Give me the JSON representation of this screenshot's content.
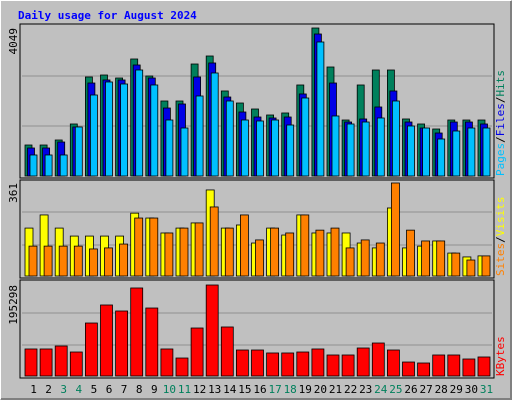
{
  "title": "Daily usage for August 2024",
  "categories": [
    "1",
    "2",
    "3",
    "4",
    "5",
    "6",
    "7",
    "8",
    "9",
    "10",
    "11",
    "12",
    "13",
    "14",
    "15",
    "16",
    "17",
    "18",
    "19",
    "20",
    "21",
    "22",
    "23",
    "24",
    "25",
    "26",
    "27",
    "28",
    "29",
    "30",
    "31"
  ],
  "category_colors": [
    "#000000",
    "#000000",
    "#00805c",
    "#00805c",
    "#000000",
    "#000000",
    "#000000",
    "#000000",
    "#000000",
    "#00805c",
    "#00805c",
    "#000000",
    "#000000",
    "#000000",
    "#000000",
    "#000000",
    "#00805c",
    "#00805c",
    "#000000",
    "#000000",
    "#000000",
    "#000000",
    "#000000",
    "#00805c",
    "#00805c",
    "#000000",
    "#000000",
    "#000000",
    "#000000",
    "#000000",
    "#00805c"
  ],
  "legend_separator": "/",
  "chart_data": [
    {
      "type": "bar",
      "ylim": [
        0,
        4049
      ],
      "yticks": [
        4049
      ],
      "series": [
        {
          "name": "Hits",
          "color": "#00805c",
          "values": [
            848,
            848,
            985,
            1423,
            2709,
            2763,
            2681,
            3201,
            2736,
            2052,
            2052,
            3064,
            3283,
            2326,
            1997,
            1833,
            1669,
            1724,
            2490,
            4049,
            2982,
            1532,
            2490,
            2900,
            2900,
            1560,
            1423,
            1286,
            1532,
            1532,
            1532
          ]
        },
        {
          "name": "Files",
          "color": "#0000e6",
          "values": [
            766,
            766,
            930,
            1341,
            2544,
            2627,
            2627,
            3037,
            2681,
            1860,
            1970,
            2709,
            3092,
            2161,
            1751,
            1614,
            1587,
            1614,
            2244,
            3885,
            2544,
            1477,
            1560,
            1888,
            2326,
            1477,
            1313,
            1176,
            1477,
            1477,
            1423
          ]
        },
        {
          "name": "Pages",
          "color": "#00c0ff",
          "values": [
            575,
            575,
            575,
            1341,
            2216,
            2572,
            2517,
            2900,
            2490,
            1532,
            1313,
            2189,
            2818,
            2052,
            1532,
            1505,
            1532,
            1395,
            2134,
            3666,
            1642,
            1423,
            1477,
            1587,
            2052,
            1368,
            1313,
            1012,
            1231,
            1313,
            1313
          ]
        }
      ]
    },
    {
      "type": "bar",
      "ylim": [
        0,
        361
      ],
      "yticks": [
        361
      ],
      "series": [
        {
          "name": "Visits",
          "color": "#ffff00",
          "values": [
            186,
            237,
            186,
            155,
            155,
            155,
            155,
            244,
            225,
            167,
            186,
            206,
            334,
            186,
            198,
            128,
            186,
            159,
            237,
            167,
            167,
            167,
            128,
            109,
            264,
            109,
            116,
            136,
            89,
            74,
            78
          ]
        },
        {
          "name": "Sites",
          "color": "#ff8000",
          "values": [
            116,
            116,
            116,
            116,
            105,
            109,
            124,
            225,
            225,
            167,
            186,
            206,
            268,
            186,
            237,
            140,
            186,
            167,
            237,
            178,
            186,
            109,
            140,
            128,
            361,
            178,
            136,
            136,
            89,
            62,
            78
          ]
        }
      ]
    },
    {
      "type": "bar",
      "ylim": [
        0,
        195298
      ],
      "yticks": [
        195298
      ],
      "series": [
        {
          "name": "KBytes",
          "color": "#ff0000",
          "values": [
            58000,
            58000,
            64400,
            51500,
            113700,
            152400,
            139500,
            188900,
            145900,
            58000,
            38600,
            103000,
            195298,
            105200,
            55800,
            55800,
            49400,
            49400,
            51500,
            58000,
            45100,
            45100,
            60100,
            70800,
            55800,
            30000,
            27900,
            45100,
            45100,
            36500,
            40800
          ]
        }
      ]
    }
  ]
}
